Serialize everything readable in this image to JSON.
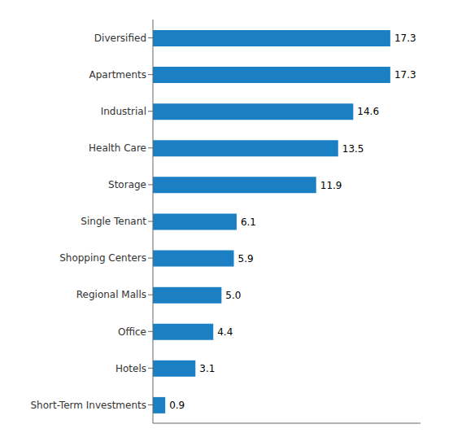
{
  "chart_data": {
    "type": "bar",
    "orientation": "horizontal",
    "categories": [
      "Short-Term Investments",
      "Hotels",
      "Office",
      "Regional Malls",
      "Shopping Centers",
      "Single Tenant",
      "Storage",
      "Health Care",
      "Industrial",
      "Apartments",
      "Diversified"
    ],
    "values": [
      0.9,
      3.1,
      4.4,
      5.0,
      5.9,
      6.1,
      11.9,
      13.5,
      14.6,
      17.3,
      17.3
    ],
    "value_labels": [
      "0.9",
      "3.1",
      "4.4",
      "5.0",
      "5.9",
      "6.1",
      "11.9",
      "13.5",
      "14.6",
      "17.3",
      "17.3"
    ],
    "color": "#1b7fc4",
    "xlim": [
      0,
      19.5
    ],
    "tick_labels": "y",
    "data_labels": true,
    "grid": false
  }
}
